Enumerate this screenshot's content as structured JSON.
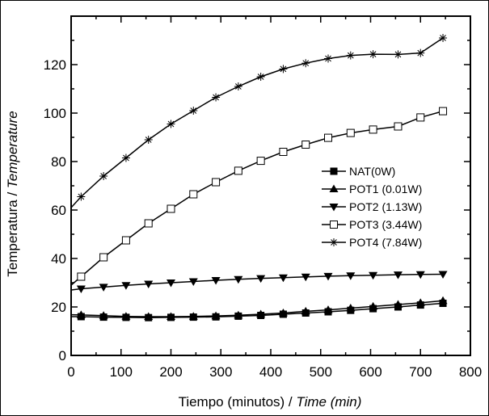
{
  "chart_data": {
    "type": "line",
    "xlabel_plain": "Tiempo (minutos) / ",
    "xlabel_italic": "Time (min)",
    "ylabel_plain": "Temperatura / ",
    "ylabel_italic": "Temperature",
    "xlim": [
      0,
      800
    ],
    "ylim": [
      0,
      140
    ],
    "x_ticks": [
      0,
      100,
      200,
      300,
      400,
      500,
      600,
      700,
      800
    ],
    "y_ticks": [
      0,
      20,
      40,
      60,
      80,
      100,
      120
    ],
    "grid": false,
    "legend_position": "center-right",
    "series": [
      {
        "name": "NAT(0W)",
        "marker": "square-filled",
        "x": [
          0,
          20,
          65,
          110,
          155,
          200,
          245,
          290,
          335,
          380,
          425,
          470,
          515,
          560,
          605,
          655,
          700,
          745
        ],
        "y": [
          16,
          16,
          15.8,
          15.7,
          15.6,
          15.7,
          15.8,
          15.9,
          16.2,
          16.5,
          17,
          17.5,
          18,
          18.6,
          19.3,
          20,
          20.8,
          21.5
        ]
      },
      {
        "name": "POT1 (0.01W)",
        "marker": "triangle-up-filled",
        "x": [
          0,
          20,
          65,
          110,
          155,
          200,
          245,
          290,
          335,
          380,
          425,
          470,
          515,
          560,
          605,
          655,
          700,
          745
        ],
        "y": [
          16.8,
          16.7,
          16.4,
          16.1,
          16,
          16,
          16.1,
          16.3,
          16.6,
          17,
          17.5,
          18.2,
          18.8,
          19.5,
          20.2,
          21,
          21.7,
          22.6
        ]
      },
      {
        "name": "POT2 (1.13W)",
        "marker": "triangle-down-filled",
        "x": [
          0,
          20,
          65,
          110,
          155,
          200,
          245,
          290,
          335,
          380,
          425,
          470,
          515,
          560,
          605,
          655,
          700,
          745
        ],
        "y": [
          27,
          27.5,
          28.2,
          28.9,
          29.5,
          30,
          30.5,
          31,
          31.4,
          31.8,
          32.1,
          32.4,
          32.7,
          32.9,
          33.1,
          33.3,
          33.4,
          33.5
        ]
      },
      {
        "name": "POT3 (3.44W)",
        "marker": "square-open",
        "x": [
          0,
          20,
          65,
          110,
          155,
          200,
          245,
          290,
          335,
          380,
          425,
          470,
          515,
          560,
          605,
          655,
          700,
          745
        ],
        "y": [
          29,
          32.5,
          40.5,
          47.5,
          54.5,
          60.5,
          66.5,
          71.5,
          76.2,
          80.3,
          84,
          87,
          89.8,
          91.8,
          93.2,
          94.5,
          98.2,
          100.8
        ]
      },
      {
        "name": "POT4 (7.84W)",
        "marker": "asterisk",
        "x": [
          0,
          20,
          65,
          110,
          155,
          200,
          245,
          290,
          335,
          380,
          425,
          470,
          515,
          560,
          605,
          655,
          700,
          745
        ],
        "y": [
          61,
          65.5,
          74,
          81.5,
          89,
          95.5,
          101,
          106.5,
          111,
          115,
          118.2,
          120.6,
          122.5,
          123.8,
          124.3,
          124.2,
          124.8,
          131
        ]
      }
    ]
  }
}
